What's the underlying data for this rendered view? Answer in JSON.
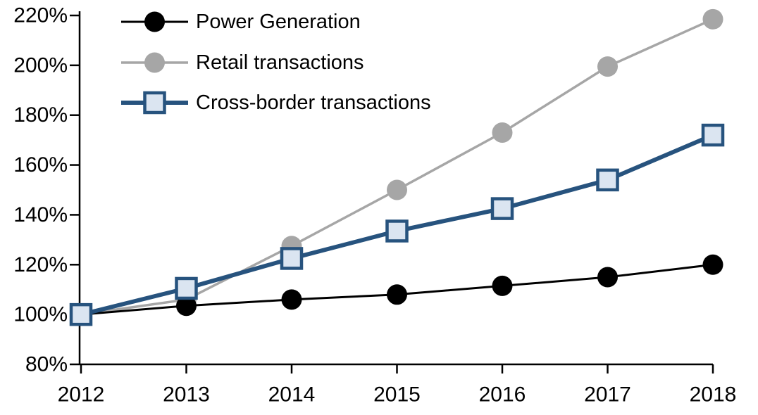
{
  "chart_data": {
    "type": "line",
    "title": "",
    "xlabel": "",
    "ylabel": "",
    "x_categories": [
      "2012",
      "2013",
      "2014",
      "2015",
      "2016",
      "2017",
      "2018"
    ],
    "ytick_labels": [
      "80%",
      "100%",
      "120%",
      "140%",
      "160%",
      "180%",
      "200%",
      "220%"
    ],
    "ytick_values": [
      80,
      100,
      120,
      140,
      160,
      180,
      200,
      220
    ],
    "ylim": [
      80,
      220
    ],
    "ytick_step": 20,
    "grid": false,
    "legend_position": "top-left-inside",
    "axis_color": "#000000",
    "series": [
      {
        "name": "Power Generation",
        "color": "#000000",
        "marker": "circle",
        "marker_fill": "#000000",
        "line_width": 3,
        "values": [
          100,
          103.5,
          106,
          108,
          111.5,
          115,
          120
        ]
      },
      {
        "name": "Retail transactions",
        "color": "#a6a6a6",
        "marker": "circle",
        "marker_fill": "#a6a6a6",
        "line_width": 3.5,
        "values": [
          100,
          106,
          127.5,
          150,
          173,
          199.5,
          218.5
        ]
      },
      {
        "name": "Cross-border transactions",
        "color": "#27537e",
        "marker": "square",
        "marker_fill": "#dbe5f1",
        "line_width": 6,
        "values": [
          100,
          110.5,
          122.5,
          133.5,
          142.5,
          154,
          172
        ]
      }
    ],
    "draw_order": [
      1,
      0,
      2
    ]
  }
}
